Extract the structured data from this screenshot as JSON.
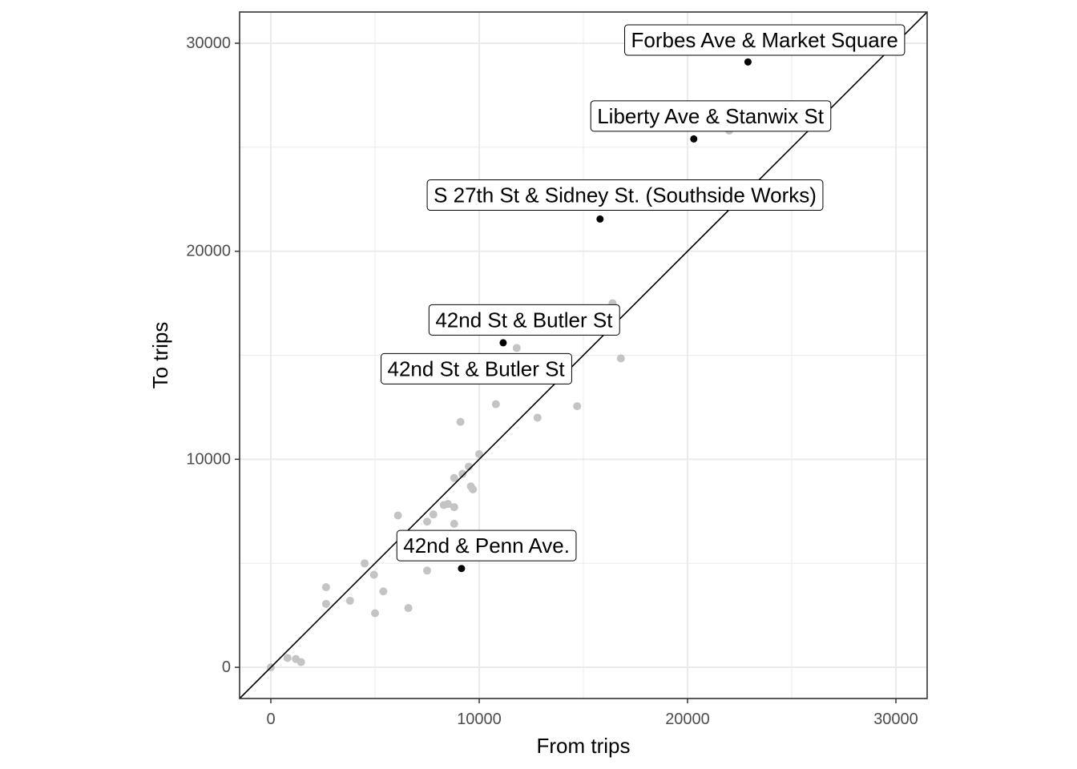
{
  "chart_data": {
    "type": "scatter",
    "title": "",
    "xlabel": "From trips",
    "ylabel": "To trips",
    "xlim": [
      -1500,
      31500
    ],
    "ylim": [
      -1500,
      31500
    ],
    "x_ticks": [
      0,
      10000,
      20000,
      30000
    ],
    "y_ticks": [
      0,
      10000,
      20000,
      30000
    ],
    "x_tick_labels": [
      "0",
      "10000",
      "20000",
      "30000"
    ],
    "y_tick_labels": [
      "0",
      "10000",
      "20000",
      "30000"
    ],
    "grid": true,
    "reference_line": "y = x",
    "colors": {
      "highlight_point": "#000000",
      "background_point": "#c4c4c4",
      "grid": "#ebebeb",
      "panel_border": "#333333",
      "reference_line": "#000000"
    },
    "background_points": [
      {
        "x": 0,
        "y": 0
      },
      {
        "x": 800,
        "y": 450
      },
      {
        "x": 1200,
        "y": 400
      },
      {
        "x": 1450,
        "y": 250
      },
      {
        "x": 2650,
        "y": 3850
      },
      {
        "x": 2650,
        "y": 3050
      },
      {
        "x": 3800,
        "y": 3200
      },
      {
        "x": 4500,
        "y": 5000
      },
      {
        "x": 4950,
        "y": 4450
      },
      {
        "x": 5000,
        "y": 2600
      },
      {
        "x": 5400,
        "y": 3650
      },
      {
        "x": 6100,
        "y": 7300
      },
      {
        "x": 6600,
        "y": 2850
      },
      {
        "x": 7000,
        "y": 5400
      },
      {
        "x": 7500,
        "y": 4650
      },
      {
        "x": 7500,
        "y": 7000
      },
      {
        "x": 7800,
        "y": 7350
      },
      {
        "x": 8300,
        "y": 7800
      },
      {
        "x": 8500,
        "y": 7850
      },
      {
        "x": 8800,
        "y": 6900
      },
      {
        "x": 8800,
        "y": 7700
      },
      {
        "x": 8800,
        "y": 9100
      },
      {
        "x": 9100,
        "y": 11800
      },
      {
        "x": 9200,
        "y": 9300
      },
      {
        "x": 9500,
        "y": 9650
      },
      {
        "x": 9600,
        "y": 8700
      },
      {
        "x": 9700,
        "y": 8550
      },
      {
        "x": 10000,
        "y": 10250
      },
      {
        "x": 10800,
        "y": 12650
      },
      {
        "x": 11800,
        "y": 15350
      },
      {
        "x": 12800,
        "y": 12000
      },
      {
        "x": 14700,
        "y": 12550
      },
      {
        "x": 16400,
        "y": 17500
      },
      {
        "x": 16800,
        "y": 14850
      },
      {
        "x": 22000,
        "y": 25800
      }
    ],
    "labeled_points": [
      {
        "x": 22900,
        "y": 29100
      },
      {
        "x": 20300,
        "y": 25400
      },
      {
        "x": 15800,
        "y": 21550
      },
      {
        "x": 11150,
        "y": 15600
      },
      {
        "x": 9150,
        "y": 4750
      }
    ],
    "annotations": [
      {
        "text": "Forbes Ave & Market Square",
        "x": 23700,
        "y": 30150
      },
      {
        "text": "Liberty Ave & Stanwix St",
        "x": 21100,
        "y": 26500
      },
      {
        "text": "S 27th St & Sidney St. (Southside Works)",
        "x": 17000,
        "y": 22700
      },
      {
        "text": "42nd St & Butler St",
        "x": 12150,
        "y": 16700
      },
      {
        "text": "42nd St & Butler St",
        "x": 9850,
        "y": 14350
      },
      {
        "text": "42nd & Penn Ave.",
        "x": 10350,
        "y": 5850
      }
    ]
  }
}
